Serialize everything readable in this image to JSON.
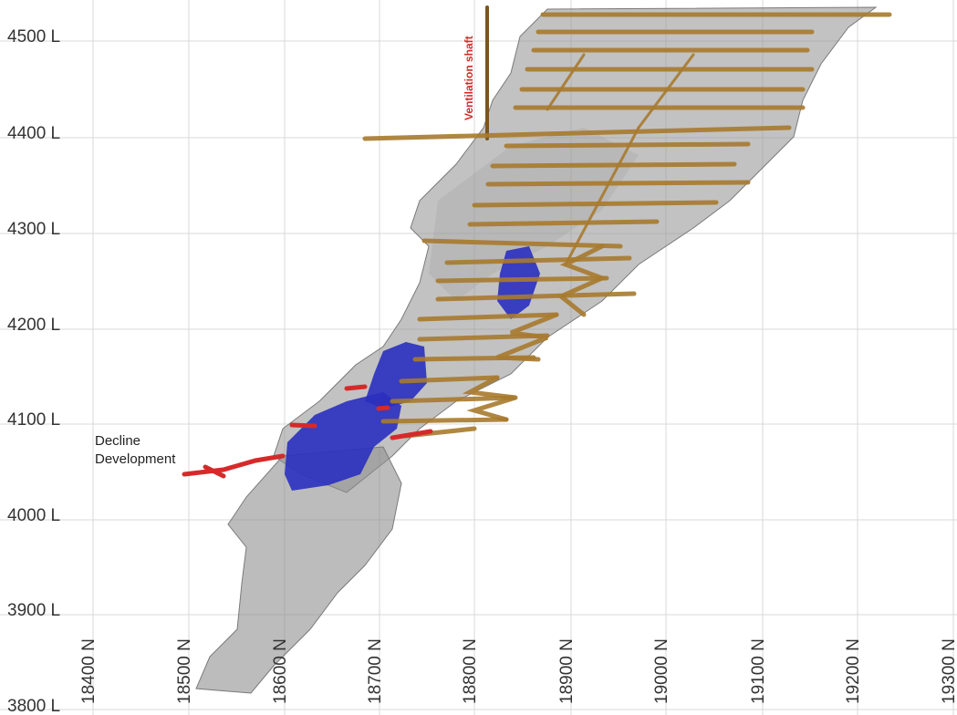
{
  "figure": {
    "elevation_labels": [
      "4500 L",
      "4400 L",
      "4300 L",
      "4200 L",
      "4100 L",
      "4000 L",
      "3900 L",
      "3800 L"
    ],
    "northing_labels": [
      "18400 N",
      "18500 N",
      "18600 N",
      "18700 N",
      "18800 N",
      "18900 N",
      "19000 N",
      "19100 N",
      "19200 N",
      "19300 N"
    ],
    "annotations": {
      "ventilation_shaft": "Ventilation shaft",
      "decline_line1": "Decline",
      "decline_line2": "Development"
    }
  },
  "colors": {
    "grid": "#d9d9d9",
    "orebody_shell": "#8f8f8f",
    "stoped_zone": "#2a2fbf",
    "level_development": "#a77a2d",
    "decline_development": "#d62a2a",
    "ventilation_label": "#d62a2a",
    "text": "#222222"
  }
}
